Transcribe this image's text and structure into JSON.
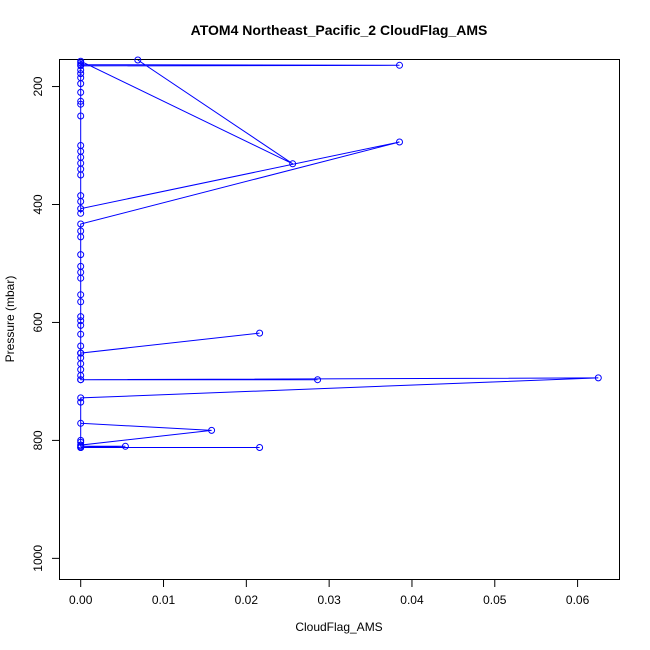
{
  "chart_data": {
    "type": "line",
    "title": "ATOM4 Northeast_Pacific_2 CloudFlag_AMS",
    "xlabel": "CloudFlag_AMS",
    "ylabel": "Pressure (mbar)",
    "xlim": [
      -0.0025,
      0.065
    ],
    "ylim": [
      1035,
      155
    ],
    "y_reversed": true,
    "xticks": [
      0.0,
      0.01,
      0.02,
      0.03,
      0.04,
      0.05,
      0.06
    ],
    "xtick_labels": [
      "0.00",
      "0.01",
      "0.02",
      "0.03",
      "0.04",
      "0.05",
      "0.06"
    ],
    "yticks": [
      200,
      400,
      600,
      800,
      1000
    ],
    "ytick_labels": [
      "200",
      "400",
      "600",
      "800",
      "1000"
    ],
    "grid": false,
    "legend": "none",
    "colors": {
      "series": "#0000ff"
    },
    "series": [
      {
        "marker": "open-circle",
        "points": [
          [
            0.0,
            812
          ],
          [
            0.0216,
            812
          ],
          [
            0.0,
            812
          ],
          [
            0.0054,
            810
          ],
          [
            0.0,
            810
          ],
          [
            0.0,
            808
          ],
          [
            0.0158,
            783
          ],
          [
            0.0,
            771
          ],
          [
            0.0,
            800
          ],
          [
            0.0,
            803
          ],
          [
            0.0,
            735
          ],
          [
            0.0,
            728
          ],
          [
            0.0625,
            694
          ],
          [
            0.0,
            697
          ],
          [
            0.0286,
            697
          ],
          [
            0.0,
            697
          ],
          [
            0.0,
            690
          ],
          [
            0.0,
            680
          ],
          [
            0.0,
            670
          ],
          [
            0.0,
            660
          ],
          [
            0.0,
            652
          ],
          [
            0.0216,
            618
          ],
          [
            0.0,
            652
          ],
          [
            0.0,
            640
          ],
          [
            0.0,
            620
          ],
          [
            0.0,
            605
          ],
          [
            0.0,
            597
          ],
          [
            0.0,
            590
          ],
          [
            0.0,
            565
          ],
          [
            0.0,
            553
          ],
          [
            0.0,
            525
          ],
          [
            0.0,
            515
          ],
          [
            0.0,
            505
          ],
          [
            0.0,
            485
          ],
          [
            0.0,
            455
          ],
          [
            0.0,
            445
          ],
          [
            0.0,
            433
          ],
          [
            0.0385,
            294
          ],
          [
            0.0,
            407
          ],
          [
            0.0,
            415
          ],
          [
            0.0,
            395
          ],
          [
            0.0,
            385
          ],
          [
            0.0,
            350
          ],
          [
            0.0,
            340
          ],
          [
            0.0,
            330
          ],
          [
            0.0,
            320
          ],
          [
            0.0,
            310
          ],
          [
            0.0,
            300
          ],
          [
            0.0,
            250
          ],
          [
            0.0,
            230
          ],
          [
            0.0,
            225
          ],
          [
            0.0,
            210
          ],
          [
            0.0,
            195
          ],
          [
            0.0,
            185
          ],
          [
            0.0,
            178
          ],
          [
            0.0,
            172
          ],
          [
            0.0,
            165
          ],
          [
            0.0385,
            164
          ],
          [
            0.0,
            163
          ],
          [
            0.0,
            160
          ],
          [
            0.0,
            157
          ],
          [
            0.0256,
            331
          ],
          [
            0.0069,
            155
          ]
        ]
      }
    ]
  }
}
